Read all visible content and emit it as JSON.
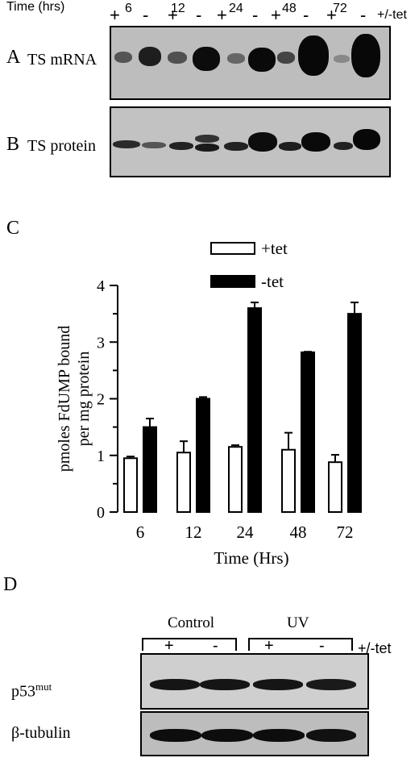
{
  "panelA": {
    "letter": "A",
    "label": "TS mRNA",
    "time_header": "Time (hrs)",
    "times": [
      "6",
      "12",
      "24",
      "48",
      "72"
    ],
    "tet_label": "+/-tet",
    "signs": [
      "+",
      "-",
      "+",
      "-",
      "+",
      "-",
      "+",
      "-",
      "+",
      "-"
    ]
  },
  "panelB": {
    "letter": "B",
    "label": "TS protein"
  },
  "panelC": {
    "letter": "C",
    "legend": [
      "+tet",
      "-tet"
    ],
    "chart_data": {
      "type": "bar",
      "categories": [
        "6",
        "12",
        "24",
        "48",
        "72"
      ],
      "series": [
        {
          "name": "+tet",
          "values": [
            0.95,
            1.05,
            1.15,
            1.1,
            0.88
          ],
          "errors": [
            0.03,
            0.2,
            0.03,
            0.3,
            0.13
          ],
          "color": "#ffffff"
        },
        {
          "name": "-tet",
          "values": [
            1.5,
            2.0,
            3.6,
            2.82,
            3.5
          ],
          "errors": [
            0.15,
            0.03,
            0.1,
            0.01,
            0.2
          ],
          "color": "#000000"
        }
      ],
      "xlabel": "Time (Hrs)",
      "ylabel_line1": "pmoles FdUMP bound",
      "ylabel_line2": "per mg protein",
      "ylim": [
        0,
        4
      ],
      "yticks": [
        "0",
        "1",
        "2",
        "3",
        "4"
      ]
    }
  },
  "panelD": {
    "letter": "D",
    "groups": [
      "Control",
      "UV"
    ],
    "signs": [
      "+",
      "-",
      "+",
      "-"
    ],
    "tet_label": "+/-tet",
    "label_p53": "p53",
    "label_p53_sup": "mut",
    "label_tubulin": "β-tubulin"
  }
}
